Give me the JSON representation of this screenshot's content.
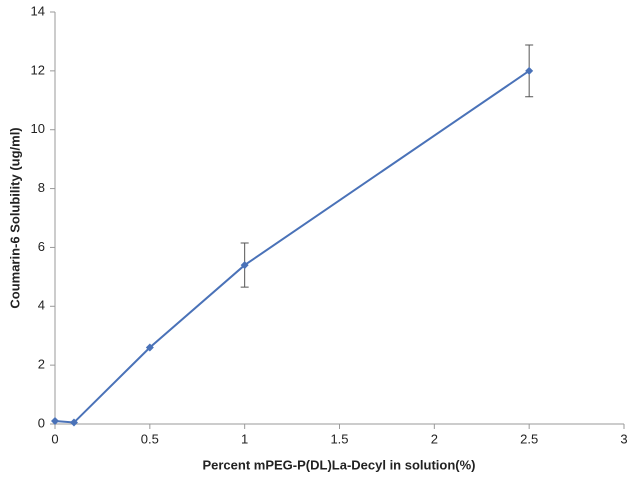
{
  "chart_data": {
    "type": "line",
    "x_label": "Percent mPEG-P(DL)La-Decyl  in solution(%)",
    "y_label": "Coumarin-6 Solubility (ug/ml)",
    "x": [
      0,
      0.1,
      0.5,
      1,
      2.5
    ],
    "series": [
      {
        "color": "#4a72b8",
        "values": [
          0.1,
          0.05,
          2.6,
          5.4,
          12
        ],
        "errors": [
          null,
          null,
          null,
          0.75,
          0.88
        ]
      }
    ],
    "xlim": [
      0,
      3
    ],
    "xticks": [
      0,
      0.5,
      1,
      1.5,
      2,
      2.5,
      3
    ],
    "ylim": [
      0,
      14
    ],
    "yticks": [
      0,
      2,
      4,
      6,
      8,
      10,
      12,
      14
    ],
    "grid": false
  }
}
